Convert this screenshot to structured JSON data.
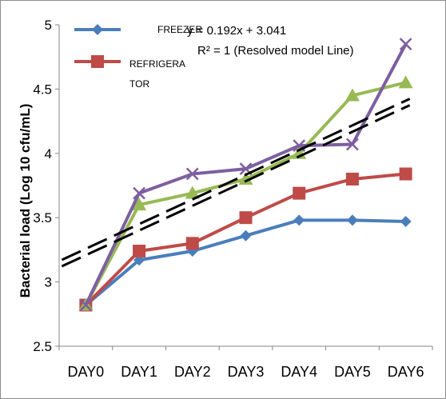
{
  "chart_data": {
    "type": "line",
    "categories": [
      "DAY0",
      "DAY1",
      "DAY2",
      "DAY3",
      "DAY4",
      "DAY5",
      "DAY6"
    ],
    "ylabel": "Bacterial load (Log 10 cfu/mL)",
    "ylim": [
      2.5,
      5
    ],
    "yticks": [
      "2.5",
      "3",
      "3.5",
      "4",
      "4.5",
      "5"
    ],
    "grid": false,
    "legend_position": "top-left",
    "series": [
      {
        "name": "FREEZER",
        "color": "#4a7ebb",
        "marker": "diamond",
        "values": [
          2.82,
          3.17,
          3.24,
          3.36,
          3.48,
          3.48,
          3.47
        ]
      },
      {
        "name": "REFRIGERATOR",
        "label_lines": [
          "REFRIGERA",
          "TOR"
        ],
        "color": "#be4b48",
        "marker": "square",
        "values": [
          2.82,
          3.24,
          3.3,
          3.5,
          3.69,
          3.8,
          3.84
        ]
      },
      {
        "color": "#98b954",
        "marker": "triangle",
        "values": [
          2.82,
          3.6,
          3.69,
          3.8,
          4.0,
          4.45,
          4.55
        ]
      },
      {
        "color": "#7d5fa0",
        "marker": "x",
        "values": [
          2.82,
          3.69,
          3.84,
          3.88,
          4.06,
          4.07,
          4.85
        ]
      }
    ],
    "trendline": {
      "slope": 0.192,
      "intercept": 3.041,
      "style": "dashed",
      "equation": "y = 0.192x + 3.041",
      "r2_label": "R² = 1 (Resolved model Line)"
    }
  }
}
